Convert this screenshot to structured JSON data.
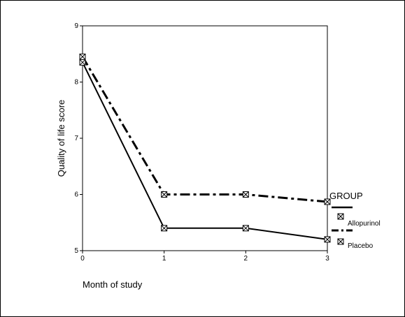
{
  "chart_data": {
    "type": "line",
    "title": "",
    "xlabel": "Month of study",
    "ylabel": "Quality of life score",
    "x": [
      0,
      1,
      2,
      3
    ],
    "x_ticks": [
      "0",
      "1",
      "2",
      "3"
    ],
    "y_ticks": [
      "5",
      "6",
      "7",
      "8",
      "9"
    ],
    "xlim": [
      0,
      3
    ],
    "ylim": [
      5,
      9
    ],
    "grid": false,
    "legend": {
      "title": "GROUP",
      "placement": "right"
    },
    "series": [
      {
        "name": "Allopurinol",
        "values": [
          8.35,
          5.4,
          5.4,
          5.2
        ],
        "line_style": "solid",
        "color": "#000000"
      },
      {
        "name": "Placebo",
        "values": [
          8.45,
          6.0,
          6.0,
          5.87
        ],
        "line_style": "dash-dot",
        "color": "#000000"
      }
    ],
    "marker": "square-with-x"
  }
}
